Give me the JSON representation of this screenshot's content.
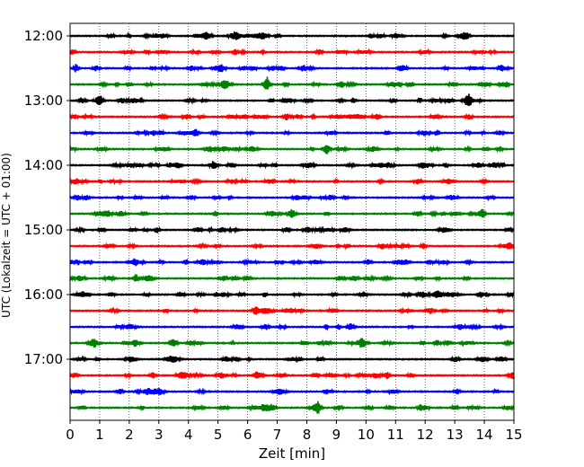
{
  "chart_data": {
    "type": "line",
    "title": "",
    "xlabel": "Zeit  [min]",
    "ylabel": "UTC (Lokalzeit = UTC + 01:00)",
    "xlim": [
      0,
      15
    ],
    "x_ticks": [
      0,
      1,
      2,
      3,
      4,
      5,
      6,
      7,
      8,
      9,
      10,
      11,
      12,
      13,
      14,
      15
    ],
    "x_tick_labels": [
      "0",
      "1",
      "2",
      "3",
      "4",
      "5",
      "6",
      "7",
      "8",
      "9",
      "10",
      "11",
      "12",
      "13",
      "14",
      "15"
    ],
    "y_tick_labels": [
      "12:00",
      "13:00",
      "14:00",
      "15:00",
      "16:00",
      "17:00"
    ],
    "vertical_grid": true,
    "trace_interval_minutes": 15,
    "color_cycle": [
      "#000000",
      "#ff0000",
      "#0000ff",
      "#008000"
    ],
    "series": [
      {
        "start": "12:00",
        "events": [
          {
            "t": 13.4,
            "a": 1.0
          }
        ]
      },
      {
        "start": "12:15",
        "events": []
      },
      {
        "start": "12:30",
        "events": []
      },
      {
        "start": "12:45",
        "events": [
          {
            "t": 6.65,
            "a": 2.3
          },
          {
            "t": 9.15,
            "a": 0.9
          }
        ]
      },
      {
        "start": "13:00",
        "events": [
          {
            "t": 13.45,
            "a": 1.4
          }
        ]
      },
      {
        "start": "13:15",
        "events": []
      },
      {
        "start": "13:30",
        "events": []
      },
      {
        "start": "13:45",
        "events": [
          {
            "t": 8.7,
            "a": 0.7
          }
        ]
      },
      {
        "start": "14:00",
        "events": [
          {
            "t": 5.45,
            "a": 0.9
          }
        ]
      },
      {
        "start": "14:15",
        "events": []
      },
      {
        "start": "14:30",
        "events": [
          {
            "t": 3.2,
            "a": 0.6
          }
        ]
      },
      {
        "start": "14:45",
        "events": [
          {
            "t": 13.8,
            "a": 0.6
          }
        ]
      },
      {
        "start": "15:00",
        "events": []
      },
      {
        "start": "15:15",
        "events": []
      },
      {
        "start": "15:30",
        "events": [
          {
            "t": 11.4,
            "a": 0.6
          }
        ]
      },
      {
        "start": "15:45",
        "events": []
      },
      {
        "start": "16:00",
        "events": [
          {
            "t": 1.4,
            "a": 0.6
          }
        ]
      },
      {
        "start": "16:15",
        "events": []
      },
      {
        "start": "16:30",
        "events": []
      },
      {
        "start": "16:45",
        "events": [
          {
            "t": 2.2,
            "a": 0.6
          }
        ]
      },
      {
        "start": "17:00",
        "events": [
          {
            "t": 5.3,
            "a": 0.6
          }
        ]
      },
      {
        "start": "17:15",
        "events": [
          {
            "t": 8.3,
            "a": 0.8
          },
          {
            "t": 10.7,
            "a": 1.1
          },
          {
            "t": 15.0,
            "a": 0.7
          }
        ]
      },
      {
        "start": "17:30",
        "events": []
      },
      {
        "start": "17:45",
        "events": [
          {
            "t": 0.4,
            "a": 0.6
          }
        ]
      }
    ]
  }
}
